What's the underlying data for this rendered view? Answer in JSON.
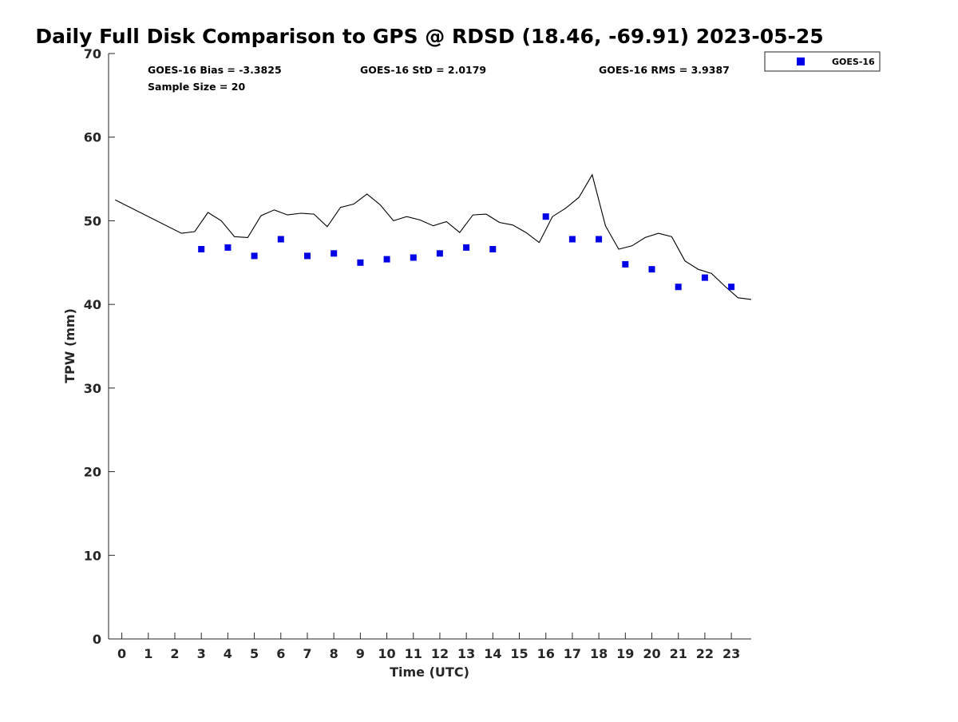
{
  "chart_data": {
    "type": "scatter",
    "title": "Daily Full Disk Comparison to GPS @ RDSD (18.46, -69.91) 2023-05-25",
    "xlabel": "Time (UTC)",
    "ylabel": "TPW (mm)",
    "xlim": [
      -0.5,
      23.75
    ],
    "ylim": [
      0,
      70
    ],
    "x_ticks": [
      0,
      1,
      2,
      3,
      4,
      5,
      6,
      7,
      8,
      9,
      10,
      11,
      12,
      13,
      14,
      15,
      16,
      17,
      18,
      19,
      20,
      21,
      22,
      23
    ],
    "y_ticks": [
      0,
      10,
      20,
      30,
      40,
      50,
      60,
      70
    ],
    "grid": false,
    "legend": {
      "placement": "top-right-outside",
      "entries": [
        "GOES-16"
      ]
    },
    "stats": {
      "bias": "GOES-16 Bias = -3.3825",
      "std": "GOES-16 StD = 2.0179",
      "rms": "GOES-16 RMS = 3.9387",
      "sample": "Sample Size = 20"
    },
    "series": [
      {
        "name": "GOES-16",
        "kind": "scatter",
        "color": "#0000e6",
        "marker": "square",
        "x": [
          3,
          4,
          5,
          6,
          7,
          8,
          9,
          10,
          11,
          12,
          13,
          14,
          16,
          17,
          18,
          19,
          20,
          21,
          22,
          23
        ],
        "y": [
          46.6,
          46.8,
          45.8,
          47.8,
          45.8,
          46.1,
          45.0,
          45.4,
          45.6,
          46.1,
          46.8,
          46.6,
          50.5,
          47.8,
          47.8,
          44.8,
          44.2,
          42.1,
          43.2,
          42.1
        ]
      },
      {
        "kind": "line",
        "color": "#000000",
        "x": [
          -0.25,
          2.25,
          2.75,
          3.25,
          3.75,
          4.25,
          4.75,
          5.25,
          5.75,
          6.25,
          6.75,
          7.25,
          7.75,
          8.25,
          8.75,
          9.25,
          9.75,
          10.25,
          10.75,
          11.25,
          11.75,
          12.25,
          12.75,
          13.25,
          13.75,
          14.25,
          14.75,
          15.25,
          15.75,
          16.25,
          16.75,
          17.25,
          17.75,
          18.25,
          18.75,
          19.25,
          19.75,
          20.25,
          20.75,
          21.25,
          21.75,
          22.25,
          22.75,
          23.25,
          23.75
        ],
        "y": [
          52.5,
          48.5,
          48.7,
          51.0,
          50.0,
          48.1,
          48.0,
          50.6,
          51.3,
          50.7,
          50.9,
          50.8,
          49.3,
          51.6,
          52.0,
          53.2,
          51.9,
          50.0,
          50.5,
          50.1,
          49.4,
          49.9,
          48.6,
          50.7,
          50.8,
          49.8,
          49.5,
          48.6,
          47.4,
          50.5,
          51.5,
          52.8,
          55.5,
          49.4,
          46.6,
          47.0,
          48.0,
          48.5,
          48.1,
          45.2,
          44.2,
          43.7,
          42.2,
          40.8,
          40.6
        ]
      }
    ]
  }
}
